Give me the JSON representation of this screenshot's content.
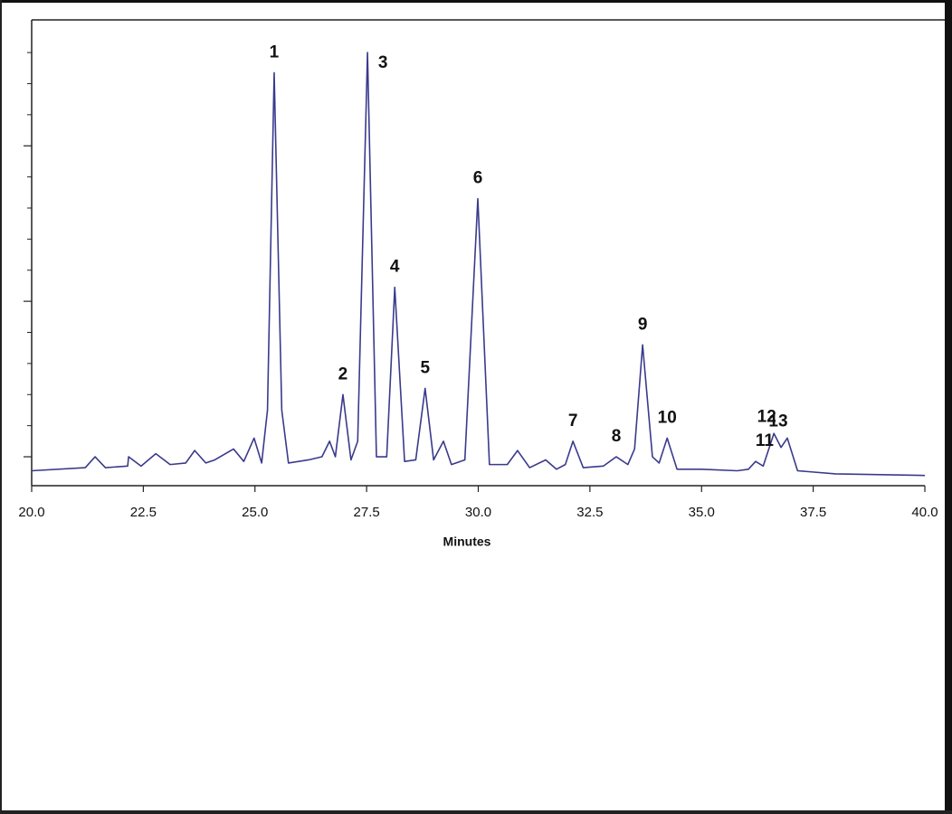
{
  "chart_data": {
    "type": "line",
    "xlabel": "Minutes",
    "xlim": [
      20,
      40
    ],
    "xticks": [
      {
        "value": 20,
        "label": "20.0"
      },
      {
        "value": 22.5,
        "label": "22.5"
      },
      {
        "value": 25,
        "label": "25.0"
      },
      {
        "value": 27.5,
        "label": "27.5"
      },
      {
        "value": 30,
        "label": "30.0"
      },
      {
        "value": 32.5,
        "label": "32.5"
      },
      {
        "value": 35,
        "label": "35.0"
      },
      {
        "value": 37.5,
        "label": "37.5"
      },
      {
        "value": 40,
        "label": "40.0"
      }
    ],
    "ylim": [
      0.814,
      3.81
    ],
    "yticks": [
      1,
      2,
      3
    ],
    "yminorticks": [
      1.2,
      1.4,
      1.6,
      1.8,
      2.2,
      2.4,
      2.6,
      2.8,
      3.2,
      3.4,
      3.6
    ],
    "series": [
      {
        "color": "#3a3a8c",
        "x": [
          20.0,
          21.2,
          21.42,
          21.65,
          22.15,
          22.17,
          22.45,
          22.78,
          23.1,
          23.45,
          23.65,
          23.9,
          24.1,
          24.52,
          24.75,
          24.98,
          25.15,
          25.28,
          25.43,
          25.6,
          25.75,
          26.2,
          26.5,
          26.67,
          26.8,
          26.97,
          27.15,
          27.3,
          27.52,
          27.72,
          27.95,
          28.13,
          28.35,
          28.6,
          28.81,
          29.0,
          29.22,
          29.4,
          29.7,
          29.99,
          30.25,
          30.65,
          30.88,
          31.15,
          31.51,
          31.75,
          31.95,
          32.12,
          32.35,
          32.8,
          33.09,
          33.35,
          33.5,
          33.68,
          33.9,
          34.05,
          34.23,
          34.45,
          35.0,
          35.8,
          36.05,
          36.21,
          36.38,
          36.62,
          36.78,
          36.92,
          37.15,
          38.0,
          40.0
        ],
        "values": [
          0.91,
          0.93,
          1.0,
          0.93,
          0.94,
          1.0,
          0.94,
          1.02,
          0.95,
          0.96,
          1.04,
          0.96,
          0.98,
          1.05,
          0.97,
          1.12,
          0.96,
          1.3,
          3.47,
          1.3,
          0.96,
          0.98,
          1.0,
          1.1,
          1.0,
          1.4,
          0.98,
          1.1,
          3.6,
          1.0,
          1.0,
          2.09,
          0.97,
          0.98,
          1.44,
          0.98,
          1.1,
          0.95,
          0.98,
          2.66,
          0.95,
          0.95,
          1.04,
          0.93,
          0.98,
          0.92,
          0.95,
          1.1,
          0.93,
          0.94,
          1.0,
          0.95,
          1.05,
          1.72,
          1.0,
          0.96,
          1.12,
          0.92,
          0.92,
          0.91,
          0.92,
          0.97,
          0.94,
          1.15,
          1.06,
          1.12,
          0.91,
          0.89,
          0.88
        ]
      }
    ],
    "annotations": [
      {
        "text": "1",
        "x": 25.43,
        "y": 3.47
      },
      {
        "text": "2",
        "x": 26.97,
        "y": 1.4
      },
      {
        "text": "3",
        "x": 27.52,
        "y": 3.6
      },
      {
        "text": "4",
        "x": 28.13,
        "y": 2.09
      },
      {
        "text": "5",
        "x": 28.81,
        "y": 1.44
      },
      {
        "text": "6",
        "x": 29.99,
        "y": 2.66
      },
      {
        "text": "7",
        "x": 32.12,
        "y": 1.1
      },
      {
        "text": "8",
        "x": 33.09,
        "y": 1.0
      },
      {
        "text": "9",
        "x": 33.68,
        "y": 1.72
      },
      {
        "text": "10",
        "x": 34.23,
        "y": 1.12
      },
      {
        "text": "11",
        "x": 36.21,
        "y": 0.97
      },
      {
        "text": "12",
        "x": 36.62,
        "y": 1.15
      },
      {
        "text": "13",
        "x": 36.92,
        "y": 1.12
      }
    ]
  }
}
